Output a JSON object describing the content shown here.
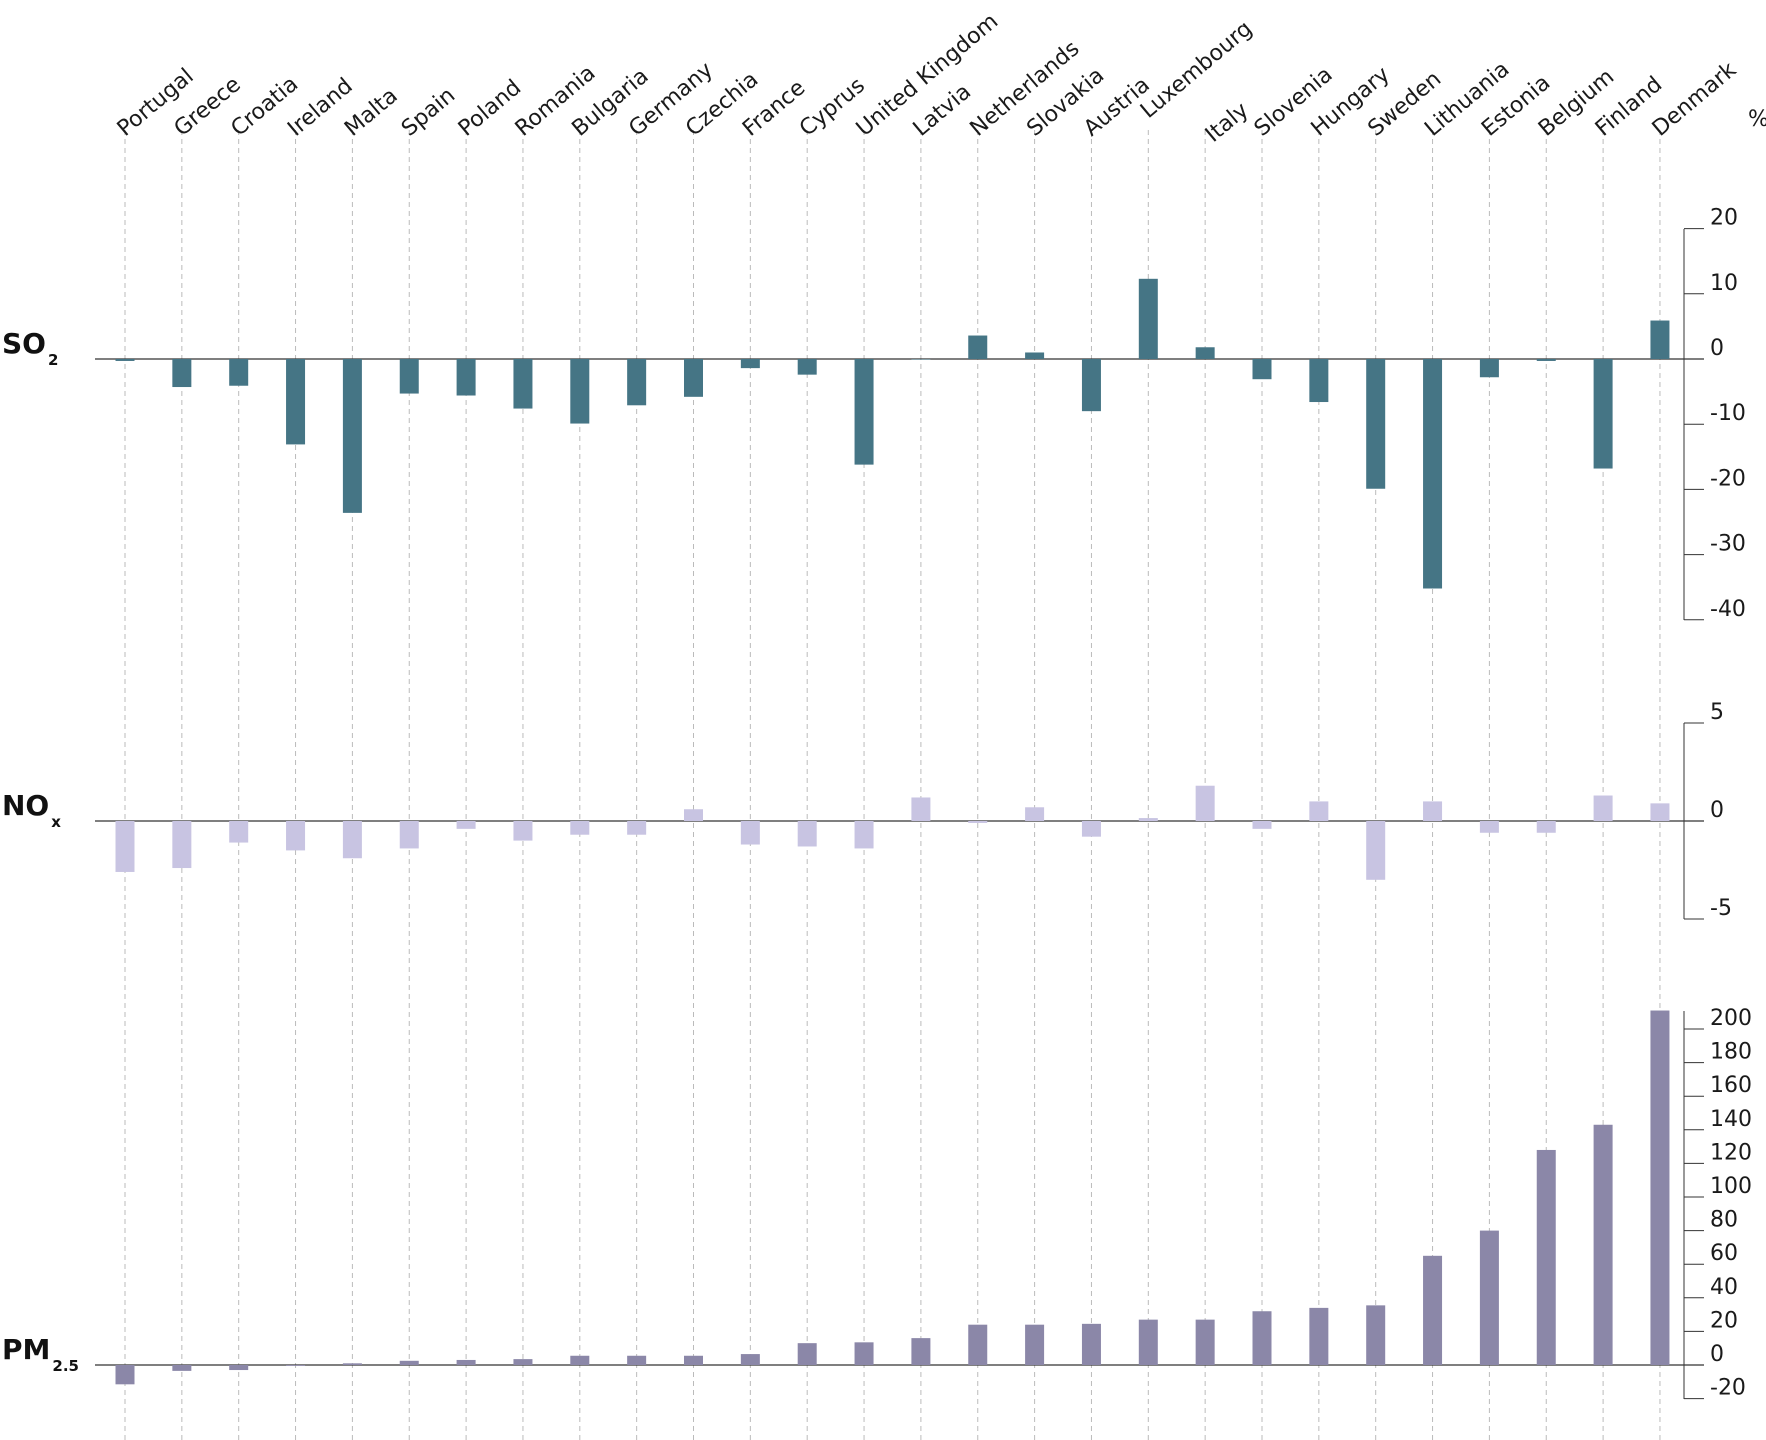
{
  "unit": "%",
  "colors": {
    "so2": "#457585",
    "nox": "#c8c4e2",
    "pm25": "#8b87a8",
    "grid": "#bbbbbb",
    "axis": "#333333"
  },
  "chart_data": {
    "type": "bar",
    "categories": [
      "Portugal",
      "Greece",
      "Croatia",
      "Ireland",
      "Malta",
      "Spain",
      "Poland",
      "Romania",
      "Bulgaria",
      "Germany",
      "Czechia",
      "France",
      "Cyprus",
      "United Kingdom",
      "Latvia",
      "Netherlands",
      "Slovakia",
      "Austria",
      "Luxembourg",
      "Italy",
      "Slovenia",
      "Hungary",
      "Sweden",
      "Lithuania",
      "Estonia",
      "Belgium",
      "Finland",
      "Denmark"
    ],
    "panels": [
      {
        "label": "SO",
        "sub": "2",
        "series_key": "so2",
        "ylim": [
          -40,
          20
        ],
        "ticks": [
          "20",
          "10",
          "0",
          "-10",
          "-20",
          "-30",
          "-40"
        ],
        "tick_values": [
          20,
          10,
          0,
          -10,
          -20,
          -30,
          -40
        ],
        "values": [
          -0.3,
          -4.3,
          -4.1,
          -13.1,
          -23.6,
          -5.3,
          -5.6,
          -7.6,
          -9.9,
          -7.1,
          -5.8,
          -1.4,
          -2.4,
          -16.2,
          0.0,
          3.6,
          1.0,
          -8.0,
          12.3,
          1.8,
          -3.1,
          -6.6,
          -19.9,
          -35.2,
          -2.8,
          -0.3,
          -16.8,
          5.9
        ]
      },
      {
        "label": "NO",
        "sub": "x",
        "series_key": "nox",
        "ylim": [
          -5,
          5
        ],
        "ticks": [
          "5",
          "0",
          "-5"
        ],
        "tick_values": [
          5,
          0,
          -5
        ],
        "values": [
          -2.6,
          -2.4,
          -1.1,
          -1.5,
          -1.9,
          -1.4,
          -0.4,
          -1.0,
          -0.7,
          -0.7,
          0.6,
          -1.2,
          -1.3,
          -1.4,
          1.2,
          -0.1,
          0.7,
          -0.8,
          0.15,
          1.8,
          -0.4,
          1.0,
          -3.0,
          1.0,
          -0.6,
          -0.6,
          1.3,
          0.9
        ]
      },
      {
        "label": "PM",
        "sub": "2.5",
        "series_key": "pm25",
        "ylim": [
          -20,
          210
        ],
        "ticks": [
          "200",
          "180",
          "160",
          "140",
          "120",
          "100",
          "80",
          "60",
          "40",
          "20",
          "0",
          "-20"
        ],
        "tick_values": [
          200,
          180,
          160,
          140,
          120,
          100,
          80,
          60,
          40,
          20,
          0,
          -20
        ],
        "values": [
          -11.5,
          -3.5,
          -3.0,
          -0.5,
          1.0,
          2.5,
          3.0,
          3.5,
          5.5,
          5.5,
          5.5,
          6.5,
          13.0,
          13.5,
          16.0,
          24.0,
          24.0,
          24.5,
          27.0,
          27.0,
          32.0,
          34.0,
          35.5,
          65.0,
          80.0,
          128.0,
          143.0,
          211.0
        ]
      }
    ],
    "grid": true
  }
}
